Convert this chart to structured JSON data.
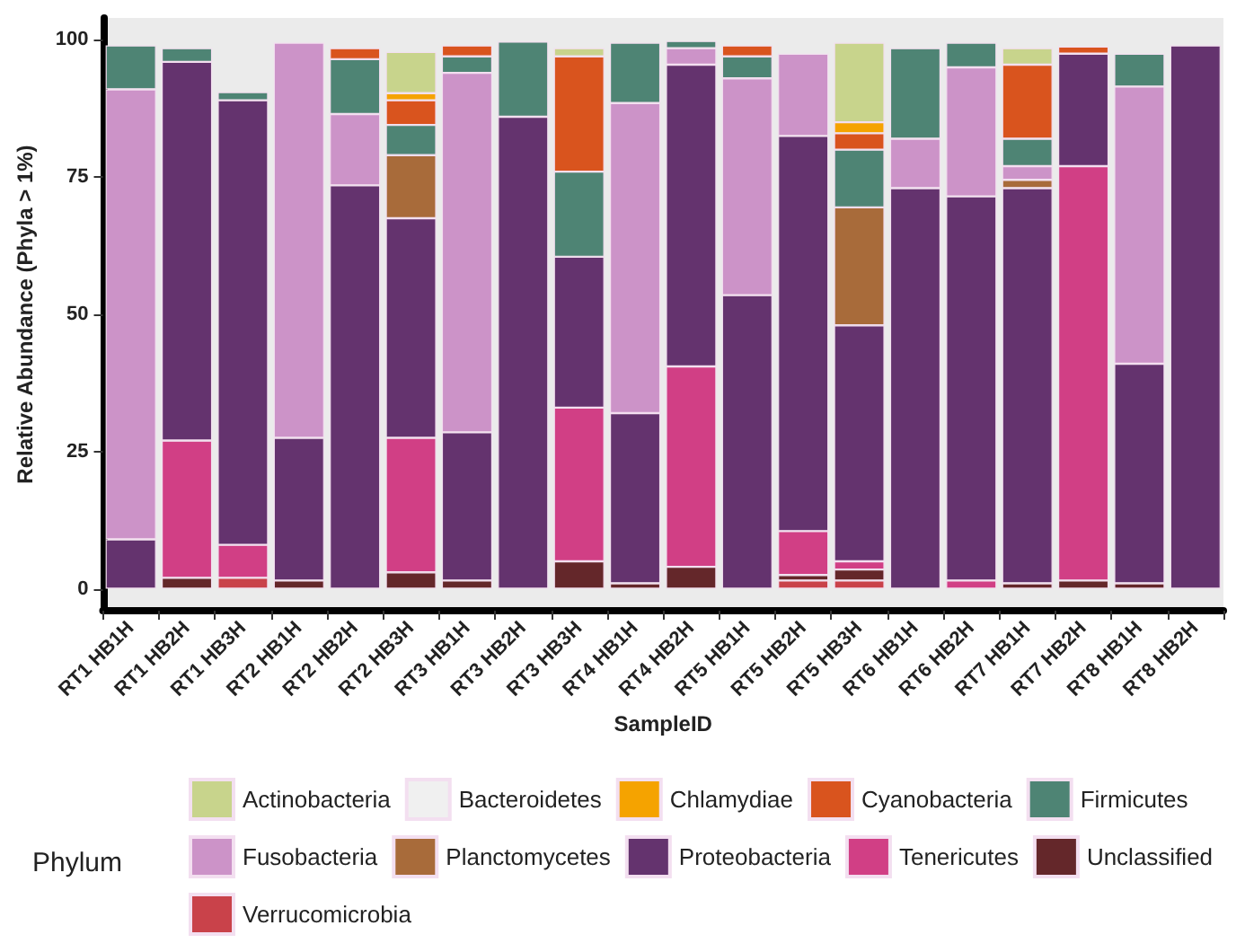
{
  "chart_data": {
    "type": "bar",
    "stacked": true,
    "xlabel": "SampleID",
    "ylabel": "Relative Abundance (Phyla > 1%)",
    "legend_title": "Phylum",
    "legend": "bottom",
    "grid": false,
    "categories": [
      "RT1 HB1H",
      "RT1 HB2H",
      "RT1 HB3H",
      "RT2 HB1H",
      "RT2 HB2H",
      "RT2 HB3H",
      "RT3 HB1H",
      "RT3 HB2H",
      "RT3 HB3H",
      "RT4 HB1H",
      "RT4 HB2H",
      "RT5 HB1H",
      "RT5 HB2H",
      "RT5 HB3H",
      "RT6 HB1H",
      "RT6 HB2H",
      "RT7 HB1H",
      "RT7 HB2H",
      "RT8 HB1H",
      "RT8 HB2H"
    ],
    "ylim": [
      -4,
      104
    ],
    "yticks": [
      0,
      25,
      50,
      75,
      100
    ],
    "series": [
      {
        "name": "Verrucomicrobia",
        "color": "#c9424a",
        "values": [
          null,
          null,
          2,
          null,
          null,
          null,
          null,
          null,
          null,
          null,
          null,
          null,
          1.5,
          1.5,
          null,
          null,
          null,
          null,
          null,
          null
        ]
      },
      {
        "name": "Unclassified",
        "color": "#64272a",
        "values": [
          null,
          2,
          null,
          1.5,
          null,
          3,
          1.5,
          null,
          5,
          1,
          4,
          null,
          1,
          2,
          null,
          null,
          1,
          1.5,
          1,
          null
        ]
      },
      {
        "name": "Tenericutes",
        "color": "#d13f85",
        "values": [
          null,
          25,
          6,
          null,
          null,
          24.5,
          null,
          null,
          28,
          null,
          36.5,
          null,
          8,
          1.5,
          null,
          1.5,
          null,
          75.5,
          null,
          null
        ]
      },
      {
        "name": "Proteobacteria",
        "color": "#64336e",
        "values": [
          9,
          69,
          81,
          26,
          73.5,
          40,
          27,
          86,
          27.5,
          31,
          55,
          53.5,
          72,
          43,
          73,
          70,
          72,
          20.5,
          40,
          99
        ]
      },
      {
        "name": "Planctomycetes",
        "color": "#a86b3a",
        "values": [
          null,
          null,
          null,
          null,
          null,
          11.5,
          null,
          null,
          null,
          null,
          null,
          null,
          null,
          21.5,
          null,
          null,
          1.5,
          null,
          null,
          null
        ]
      },
      {
        "name": "Fusobacteria",
        "color": "#cc93c8",
        "values": [
          82,
          null,
          null,
          72,
          13,
          null,
          65.5,
          null,
          null,
          56.5,
          3,
          39.5,
          15,
          null,
          9,
          23.5,
          2.5,
          null,
          50.5,
          null
        ]
      },
      {
        "name": "Firmicutes",
        "color": "#4e8474",
        "values": [
          8,
          2.5,
          1.5,
          null,
          10,
          5.5,
          3,
          13.7,
          15.5,
          11,
          1.3,
          4,
          null,
          10.5,
          16.5,
          4.5,
          5,
          null,
          6,
          null
        ]
      },
      {
        "name": "Cyanobacteria",
        "color": "#d9541e",
        "values": [
          null,
          null,
          null,
          null,
          2,
          4.5,
          2,
          null,
          21,
          null,
          null,
          2,
          null,
          3,
          null,
          null,
          13.5,
          1.3,
          null,
          null
        ]
      },
      {
        "name": "Chlamydiae",
        "color": "#f5a300",
        "values": [
          null,
          null,
          null,
          null,
          null,
          1.3,
          null,
          null,
          null,
          null,
          null,
          null,
          null,
          2,
          null,
          null,
          null,
          null,
          null,
          null
        ]
      },
      {
        "name": "Bacteroidetes",
        "color": "#f0f0f0",
        "values": [
          null,
          null,
          null,
          null,
          null,
          null,
          null,
          null,
          null,
          null,
          null,
          null,
          null,
          null,
          null,
          null,
          null,
          null,
          null,
          null
        ]
      },
      {
        "name": "Actinobacteria",
        "color": "#c8d48c",
        "values": [
          null,
          null,
          null,
          null,
          null,
          7.5,
          null,
          null,
          1.5,
          null,
          null,
          null,
          null,
          14.5,
          null,
          null,
          3,
          null,
          null,
          null
        ]
      }
    ]
  }
}
